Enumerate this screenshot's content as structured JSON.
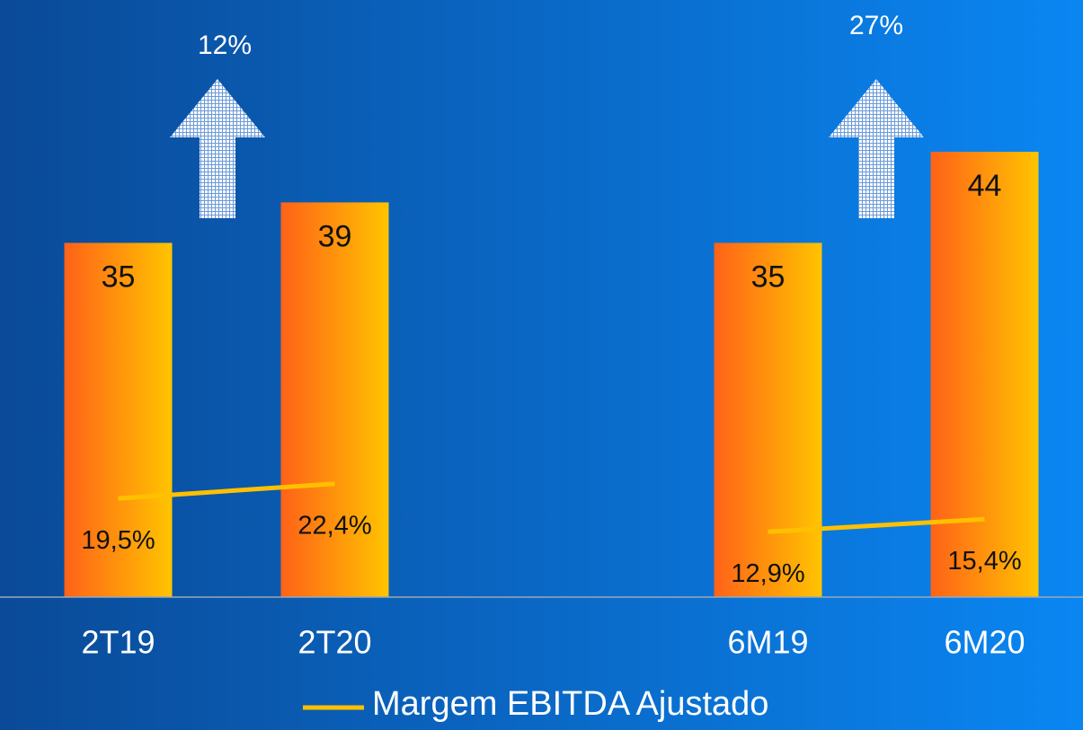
{
  "chart_data": {
    "type": "bar",
    "categories": [
      "2T19",
      "2T20",
      null,
      "6M19",
      "6M20"
    ],
    "series": [
      {
        "type": "bar",
        "color": "#ff9a10",
        "values": [
          35,
          39,
          null,
          35,
          44
        ]
      },
      {
        "type": "line",
        "name": "Margem EBITDA Ajustado",
        "color": "#ffc000",
        "axis": "y2",
        "values": [
          19.5,
          22.4,
          null,
          12.9,
          15.4
        ],
        "value_labels": [
          "19,5%",
          "22,4%",
          null,
          "12,9%",
          "15,4%"
        ]
      }
    ],
    "ylim": [
      0,
      59
    ],
    "y2lim": [
      0,
      118
    ],
    "annotations": [
      "12%",
      "27%"
    ],
    "legend": "bottom"
  }
}
